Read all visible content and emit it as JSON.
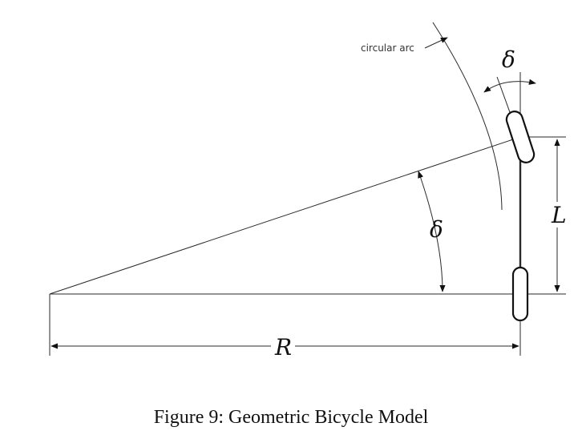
{
  "figure": {
    "caption": "Figure 9: Geometric Bicycle Model",
    "labels": {
      "arc": "circular arc",
      "delta_top": "δ",
      "delta_mid": "δ",
      "length": "L",
      "radius": "R"
    }
  }
}
